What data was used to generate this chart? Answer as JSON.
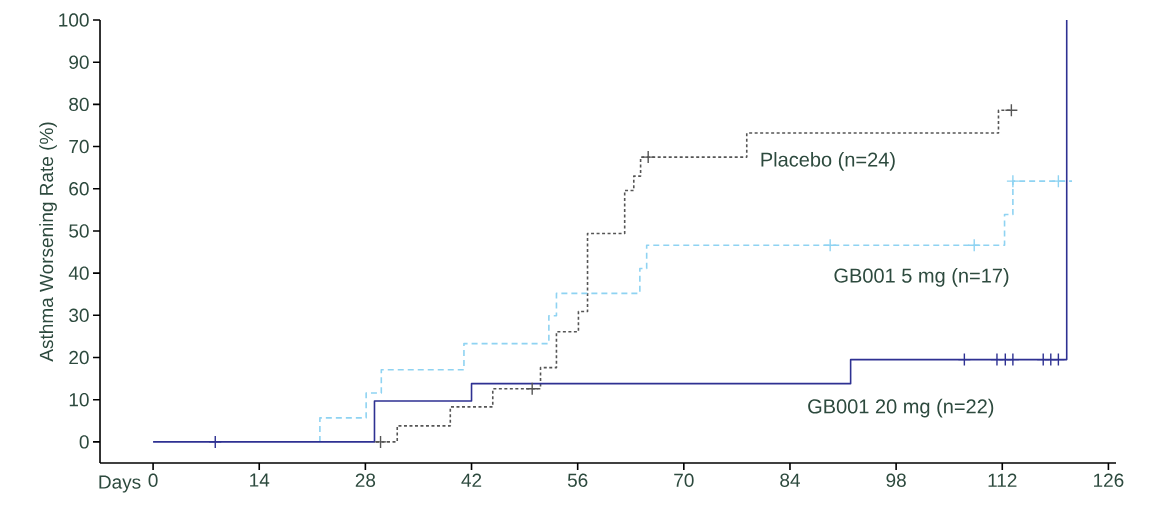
{
  "chart_data": {
    "type": "step",
    "xlabel": "Days",
    "ylabel": "Asthma Worsening Rate (%)",
    "xlim": [
      -7,
      127
    ],
    "ylim": [
      -5,
      100
    ],
    "xticks": [
      0,
      14,
      28,
      42,
      56,
      70,
      84,
      98,
      112,
      126
    ],
    "yticks": [
      0,
      10,
      20,
      30,
      40,
      50,
      60,
      70,
      80,
      90,
      100
    ],
    "grid": false,
    "series": [
      {
        "name": "Placebo (n=24)",
        "color": "#555555",
        "line_style": "dotted",
        "x": [
          29.4,
          32.2,
          39.2,
          44.8,
          51.1,
          53.2,
          56.1,
          57.3,
          62.2,
          63.4,
          64.3,
          78.3,
          111.5,
          113.2
        ],
        "values": [
          0,
          3.8,
          8.3,
          12.6,
          17.6,
          26.1,
          30.9,
          49.4,
          59.6,
          63,
          67.5,
          73.2,
          78.6,
          78.6
        ]
      },
      {
        "name": "GB001 5 mg (n=17)",
        "color": "#8fd3f2",
        "line_style": "dashed",
        "x": [
          22,
          22,
          28.1,
          30.1,
          41,
          52.2,
          53.2,
          64.2,
          65.1,
          112.3,
          113.4,
          121.2
        ],
        "values": [
          0,
          5.7,
          11.6,
          17.1,
          23.3,
          29.9,
          35.2,
          41.1,
          46.6,
          53.9,
          61.8,
          61.8
        ]
      },
      {
        "name": "GB001 20 mg (n=22)",
        "color": "#2e3192",
        "line_style": "solid",
        "x": [
          0,
          29.2,
          42,
          92,
          120.5,
          120.5
        ],
        "values": [
          0,
          9.7,
          13.8,
          19.5,
          19.5,
          100
        ]
      },
      {
        "type": "scatter",
        "marker": "cross",
        "color": "#555555",
        "x": [
          30,
          50,
          65.3,
          113.2
        ],
        "values": [
          0,
          12.6,
          67.5,
          78.6
        ]
      },
      {
        "type": "scatter",
        "marker": "cross",
        "color": "#8fd3f2",
        "x": [
          89.3,
          108.3,
          113.4,
          119.4
        ],
        "values": [
          46.6,
          46.6,
          61.8,
          61.8
        ]
      },
      {
        "type": "scatter",
        "marker": "cross",
        "color": "#2e3192",
        "x": [
          8.2,
          107,
          111.3,
          112.4,
          113.4,
          117.4,
          118.4,
          119.4
        ],
        "values": [
          0,
          19.5,
          19.5,
          19.5,
          19.5,
          19.5,
          19.5,
          19.5
        ]
      }
    ]
  }
}
